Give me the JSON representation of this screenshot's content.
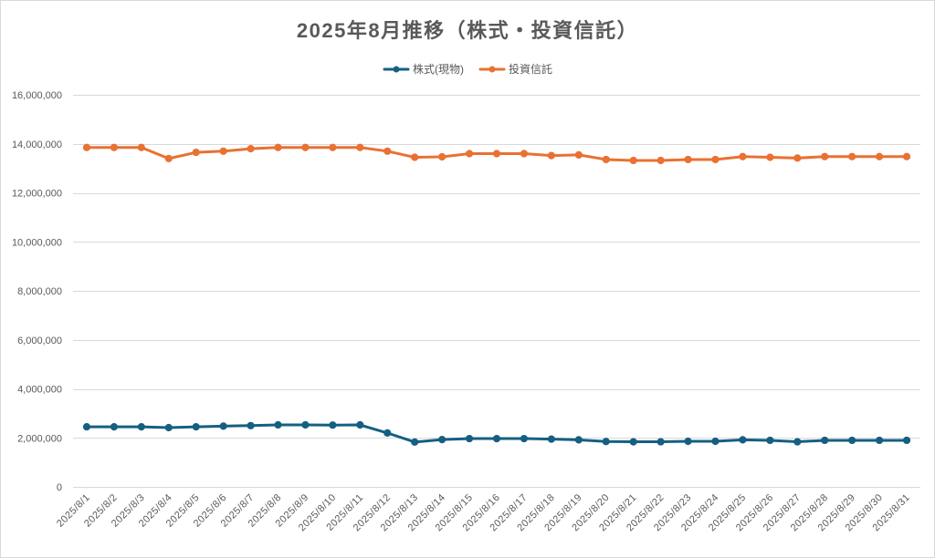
{
  "chart_data": {
    "type": "line",
    "title": "2025年8月推移（株式・投資信託）",
    "categories": [
      "2025/8/1",
      "2025/8/2",
      "2025/8/3",
      "2025/8/4",
      "2025/8/5",
      "2025/8/6",
      "2025/8/7",
      "2025/8/8",
      "2025/8/9",
      "2025/8/10",
      "2025/8/11",
      "2025/8/12",
      "2025/8/13",
      "2025/8/14",
      "2025/8/15",
      "2025/8/16",
      "2025/8/17",
      "2025/8/18",
      "2025/8/19",
      "2025/8/20",
      "2025/8/21",
      "2025/8/22",
      "2025/8/23",
      "2025/8/24",
      "2025/8/25",
      "2025/8/26",
      "2025/8/27",
      "2025/8/28",
      "2025/8/29",
      "2025/8/30",
      "2025/8/31"
    ],
    "series": [
      {
        "name": "株式(現物)",
        "color": "#156082",
        "values": [
          2450000,
          2450000,
          2450000,
          2420000,
          2450000,
          2480000,
          2500000,
          2530000,
          2530000,
          2520000,
          2530000,
          2200000,
          1830000,
          1930000,
          1970000,
          1970000,
          1970000,
          1950000,
          1920000,
          1850000,
          1840000,
          1840000,
          1860000,
          1860000,
          1920000,
          1900000,
          1840000,
          1900000,
          1900000,
          1900000,
          1900000
        ]
      },
      {
        "name": "投資信託",
        "color": "#E97132",
        "values": [
          13850000,
          13850000,
          13850000,
          13400000,
          13650000,
          13700000,
          13800000,
          13850000,
          13850000,
          13850000,
          13850000,
          13700000,
          13450000,
          13470000,
          13600000,
          13600000,
          13600000,
          13520000,
          13550000,
          13360000,
          13320000,
          13320000,
          13360000,
          13360000,
          13480000,
          13450000,
          13420000,
          13480000,
          13480000,
          13480000,
          13480000
        ]
      }
    ],
    "ylim": [
      0,
      16000000
    ],
    "yticks": [
      0,
      2000000,
      4000000,
      6000000,
      8000000,
      10000000,
      12000000,
      14000000,
      16000000
    ],
    "ytick_labels": [
      "0",
      "2,000,000",
      "4,000,000",
      "6,000,000",
      "8,000,000",
      "10,000,000",
      "12,000,000",
      "14,000,000",
      "16,000,000"
    ],
    "xlabel": "",
    "ylabel": "",
    "grid": true,
    "legend_position": "top",
    "gridline_color": "#D9D9D9",
    "text_color": "#595959"
  }
}
